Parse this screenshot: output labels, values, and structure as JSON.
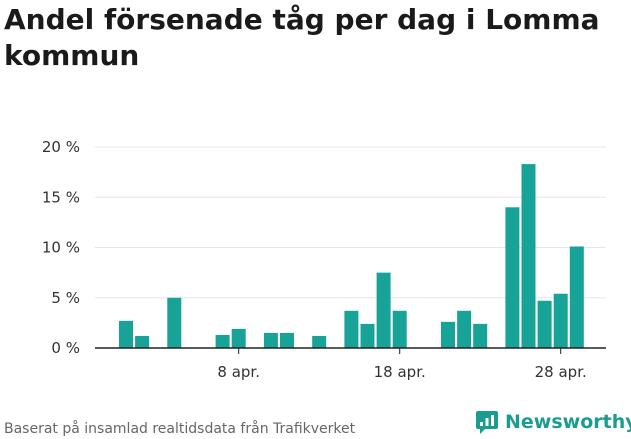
{
  "colors": {
    "bar": "#17a398",
    "axis": "#222222",
    "grid": "#e6e6e6",
    "brand": "#1a9c91"
  },
  "chart_data": {
    "type": "bar",
    "title": "Andel försenade tåg per dag i Lomma kommun",
    "x": [
      "2024-04-01",
      "2024-04-02",
      "2024-04-03",
      "2024-04-04",
      "2024-04-05",
      "2024-04-06",
      "2024-04-07",
      "2024-04-08",
      "2024-04-09",
      "2024-04-10",
      "2024-04-11",
      "2024-04-12",
      "2024-04-13",
      "2024-04-14",
      "2024-04-15",
      "2024-04-16",
      "2024-04-17",
      "2024-04-18",
      "2024-04-19",
      "2024-04-20",
      "2024-04-21",
      "2024-04-22",
      "2024-04-23",
      "2024-04-24",
      "2024-04-25",
      "2024-04-26",
      "2024-04-27",
      "2024-04-28",
      "2024-04-29"
    ],
    "values": [
      2.7,
      1.2,
      0,
      5.0,
      0,
      0,
      1.3,
      1.9,
      0,
      1.5,
      1.5,
      0,
      1.2,
      0,
      3.7,
      2.4,
      7.5,
      3.7,
      0,
      0,
      2.6,
      3.7,
      2.4,
      0,
      14.0,
      18.3,
      4.7,
      5.4,
      10.1
    ],
    "ylim": [
      0,
      20
    ],
    "yticks": [
      0,
      5,
      10,
      15,
      20
    ],
    "ytick_labels": [
      "0 %",
      "5 %",
      "10 %",
      "15 %",
      "20 %"
    ],
    "xticks": [
      "2024-04-08",
      "2024-04-18",
      "2024-04-28"
    ],
    "xtick_labels": [
      "8 apr.",
      "18 apr.",
      "28 apr."
    ],
    "xlabel": "",
    "ylabel": "",
    "grid": true
  },
  "footer": {
    "source_text": "Baserat på insamlad realtidsdata från Trafikverket"
  },
  "brand": {
    "name": "Newsworthy",
    "icon": "newsworthy-logo-icon"
  }
}
